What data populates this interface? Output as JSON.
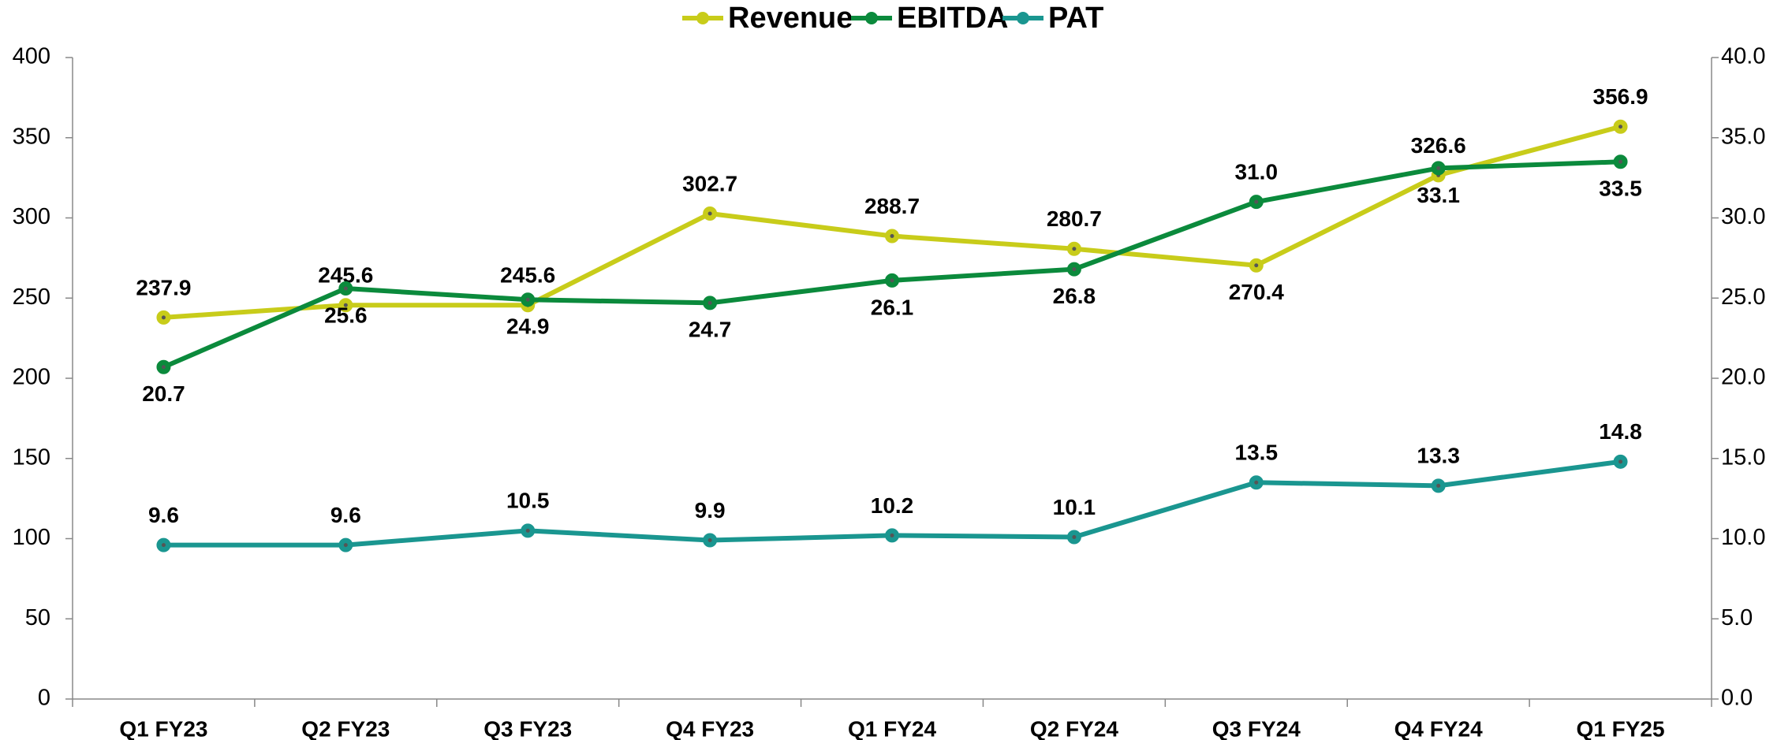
{
  "chart_data": {
    "type": "line",
    "categories": [
      "Q1 FY23",
      "Q2 FY23",
      "Q3 FY23",
      "Q4 FY23",
      "Q1 FY24",
      "Q2 FY24",
      "Q3 FY24",
      "Q4 FY24",
      "Q1 FY25"
    ],
    "series": [
      {
        "name": "Revenue",
        "color": "#c8cc1a",
        "values": [
          237.9,
          245.6,
          245.6,
          302.7,
          288.7,
          280.7,
          270.4,
          326.6,
          356.9
        ]
      },
      {
        "name": "EBITDA",
        "color": "#0b8a3c",
        "axis": "y2",
        "values": [
          20.7,
          25.6,
          24.9,
          24.7,
          26.1,
          26.8,
          31.0,
          33.1,
          33.5
        ],
        "value_labels": [
          "20.7",
          "25.6",
          "24.9",
          "24.7",
          "26.1",
          "26.8",
          "31.0",
          "33.1",
          "33.5"
        ]
      },
      {
        "name": "PAT",
        "color": "#1a9690",
        "axis": "y2",
        "values": [
          9.6,
          9.6,
          10.5,
          9.9,
          10.2,
          10.1,
          13.5,
          13.3,
          14.8
        ]
      }
    ],
    "ylim": [
      0,
      400
    ],
    "yticks": [
      0,
      50,
      100,
      150,
      200,
      250,
      300,
      350,
      400
    ],
    "y2lim": [
      0,
      40
    ],
    "y2ticks": [
      {
        "value": 0,
        "label": "0.0"
      },
      {
        "value": 5,
        "label": "5.0"
      },
      {
        "value": 10,
        "label": "10.0"
      },
      {
        "value": 15,
        "label": "15.0"
      },
      {
        "value": 20,
        "label": "20.0"
      },
      {
        "value": 25,
        "label": "25.0"
      },
      {
        "value": 30,
        "label": "30.0"
      },
      {
        "value": 35,
        "label": "35.0"
      },
      {
        "value": 40,
        "label": "40.0"
      }
    ],
    "legend": "top",
    "grid": false
  }
}
